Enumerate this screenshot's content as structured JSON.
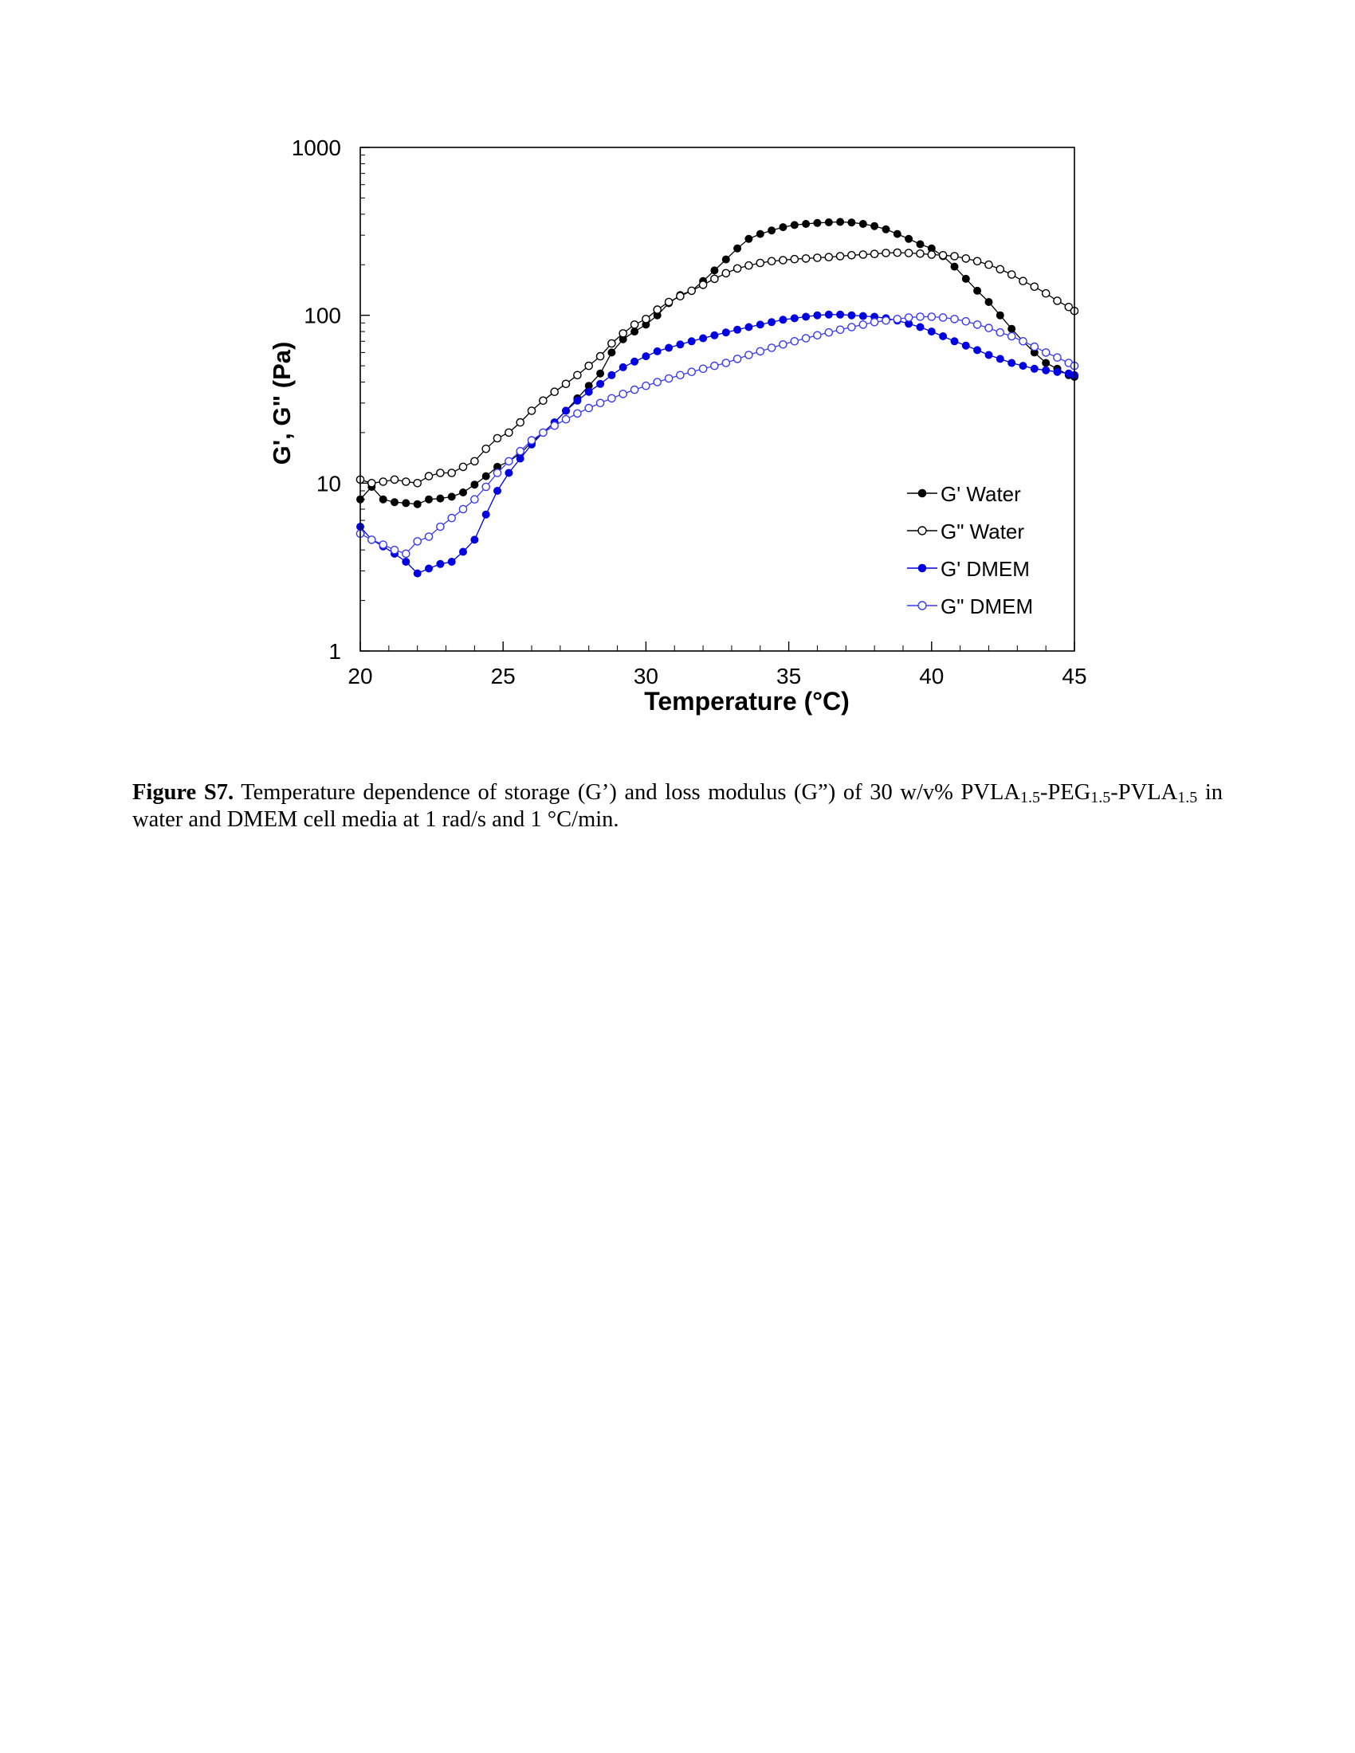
{
  "chart_data": {
    "type": "line",
    "title": "",
    "xlabel": "Temperature (°C)",
    "ylabel": "G', G\" (Pa)",
    "xlim": [
      20,
      45
    ],
    "ylim": [
      1,
      1000
    ],
    "yscale": "log",
    "xticks": [
      20,
      25,
      30,
      35,
      40,
      45
    ],
    "xtick_labels": [
      "20",
      "25",
      "30",
      "35",
      "40",
      "45"
    ],
    "yticks": [
      1,
      10,
      100,
      1000
    ],
    "ytick_labels": [
      "1",
      "10",
      "100",
      "1000"
    ],
    "grid": false,
    "legend_position": "lower-right",
    "series": [
      {
        "name": "G' Water",
        "color": "#000000",
        "marker": "filled-circle",
        "x": [
          20.0,
          20.4,
          20.8,
          21.2,
          21.6,
          22.0,
          22.4,
          22.8,
          23.2,
          23.6,
          24.0,
          24.4,
          24.8,
          25.2,
          25.6,
          26.0,
          26.4,
          26.8,
          27.2,
          27.6,
          28.0,
          28.4,
          28.8,
          29.2,
          29.6,
          30.0,
          30.4,
          30.8,
          31.2,
          31.6,
          32.0,
          32.4,
          32.8,
          33.2,
          33.6,
          34.0,
          34.4,
          34.8,
          35.2,
          35.6,
          36.0,
          36.4,
          36.8,
          37.2,
          37.6,
          38.0,
          38.4,
          38.8,
          39.2,
          39.6,
          40.0,
          40.4,
          40.8,
          41.2,
          41.6,
          42.0,
          42.4,
          42.8,
          43.2,
          43.6,
          44.0,
          44.4,
          44.8,
          45.0
        ],
        "y": [
          8.0,
          9.5,
          8.0,
          7.7,
          7.6,
          7.5,
          8.0,
          8.1,
          8.3,
          8.8,
          9.8,
          11.0,
          12.5,
          13.5,
          15.0,
          17.5,
          20,
          23,
          27,
          32,
          38,
          45,
          60,
          72,
          80,
          88,
          100,
          118,
          132,
          140,
          160,
          185,
          215,
          250,
          285,
          305,
          320,
          335,
          345,
          350,
          355,
          358,
          360,
          357,
          350,
          340,
          325,
          305,
          285,
          265,
          250,
          225,
          195,
          165,
          140,
          120,
          100,
          83,
          70,
          60,
          52,
          48,
          44,
          43
        ]
      },
      {
        "name": "G\" Water",
        "color": "#000000",
        "marker": "open-circle",
        "x": [
          20.0,
          20.4,
          20.8,
          21.2,
          21.6,
          22.0,
          22.4,
          22.8,
          23.2,
          23.6,
          24.0,
          24.4,
          24.8,
          25.2,
          25.6,
          26.0,
          26.4,
          26.8,
          27.2,
          27.6,
          28.0,
          28.4,
          28.8,
          29.2,
          29.6,
          30.0,
          30.4,
          30.8,
          31.2,
          31.6,
          32.0,
          32.4,
          32.8,
          33.2,
          33.6,
          34.0,
          34.4,
          34.8,
          35.2,
          35.6,
          36.0,
          36.4,
          36.8,
          37.2,
          37.6,
          38.0,
          38.4,
          38.8,
          39.2,
          39.6,
          40.0,
          40.4,
          40.8,
          41.2,
          41.6,
          42.0,
          42.4,
          42.8,
          43.2,
          43.6,
          44.0,
          44.4,
          44.8,
          45.0
        ],
        "y": [
          10.5,
          10.0,
          10.2,
          10.5,
          10.2,
          10.0,
          11.0,
          11.5,
          11.5,
          12.5,
          13.5,
          16.0,
          18.5,
          20,
          23,
          27,
          31,
          35,
          39,
          44,
          50,
          57,
          68,
          78,
          88,
          95,
          108,
          120,
          130,
          140,
          152,
          165,
          178,
          190,
          198,
          205,
          210,
          213,
          216,
          218,
          220,
          222,
          225,
          228,
          230,
          232,
          235,
          236,
          235,
          233,
          230,
          228,
          225,
          218,
          210,
          200,
          188,
          175,
          160,
          148,
          135,
          122,
          112,
          106
        ]
      },
      {
        "name": "G' DMEM",
        "color": "#0000e0",
        "marker": "filled-circle",
        "x": [
          20.0,
          20.4,
          20.8,
          21.2,
          21.6,
          22.0,
          22.4,
          22.8,
          23.2,
          23.6,
          24.0,
          24.4,
          24.8,
          25.2,
          25.6,
          26.0,
          26.4,
          26.8,
          27.2,
          27.6,
          28.0,
          28.4,
          28.8,
          29.2,
          29.6,
          30.0,
          30.4,
          30.8,
          31.2,
          31.6,
          32.0,
          32.4,
          32.8,
          33.2,
          33.6,
          34.0,
          34.4,
          34.8,
          35.2,
          35.6,
          36.0,
          36.4,
          36.8,
          37.2,
          37.6,
          38.0,
          38.4,
          38.8,
          39.2,
          39.6,
          40.0,
          40.4,
          40.8,
          41.2,
          41.6,
          42.0,
          42.4,
          42.8,
          43.2,
          43.6,
          44.0,
          44.4,
          44.8,
          45.0
        ],
        "y": [
          5.5,
          4.6,
          4.2,
          3.8,
          3.4,
          2.9,
          3.1,
          3.3,
          3.4,
          3.9,
          4.6,
          6.5,
          9.0,
          11.5,
          14.0,
          17.0,
          20,
          23,
          27,
          31,
          35,
          39,
          44,
          49,
          53,
          57,
          61,
          64,
          67,
          70,
          73,
          76,
          79,
          82,
          85,
          88,
          91,
          94,
          96,
          98,
          100,
          101,
          101,
          100,
          99,
          98,
          96,
          93,
          89,
          85,
          80,
          75,
          70,
          66,
          62,
          58,
          55,
          52,
          50,
          48,
          47,
          46,
          45,
          44
        ]
      },
      {
        "name": "G\" DMEM",
        "color": "#3a3af0",
        "marker": "open-circle",
        "x": [
          20.0,
          20.4,
          20.8,
          21.2,
          21.6,
          22.0,
          22.4,
          22.8,
          23.2,
          23.6,
          24.0,
          24.4,
          24.8,
          25.2,
          25.6,
          26.0,
          26.4,
          26.8,
          27.2,
          27.6,
          28.0,
          28.4,
          28.8,
          29.2,
          29.6,
          30.0,
          30.4,
          30.8,
          31.2,
          31.6,
          32.0,
          32.4,
          32.8,
          33.2,
          33.6,
          34.0,
          34.4,
          34.8,
          35.2,
          35.6,
          36.0,
          36.4,
          36.8,
          37.2,
          37.6,
          38.0,
          38.4,
          38.8,
          39.2,
          39.6,
          40.0,
          40.4,
          40.8,
          41.2,
          41.6,
          42.0,
          42.4,
          42.8,
          43.2,
          43.6,
          44.0,
          44.4,
          44.8,
          45.0
        ],
        "y": [
          5.0,
          4.6,
          4.3,
          4.0,
          3.8,
          4.5,
          4.8,
          5.5,
          6.2,
          7.0,
          8.0,
          9.5,
          11.5,
          13.5,
          15.5,
          18.0,
          20,
          22,
          24,
          26,
          28,
          30,
          32,
          34,
          36,
          38,
          40,
          42,
          44,
          46,
          48,
          50,
          52,
          55,
          58,
          61,
          64,
          67,
          70,
          73,
          76,
          79,
          82,
          85,
          88,
          91,
          93,
          95,
          97,
          98,
          98,
          97,
          95,
          92,
          88,
          84,
          79,
          75,
          70,
          65,
          60,
          56,
          52,
          50
        ]
      }
    ]
  },
  "caption": {
    "label": "Figure S7.",
    "part1": " Temperature dependence of storage (G’) and loss modulus (G”) of 30 w/v% PVLA",
    "sub1": "1.5",
    "part2": "-PEG",
    "sub2": "1.5",
    "part3": "-PVLA",
    "sub3": "1.5",
    "part4": " in water and DMEM cell media at 1 rad/s and 1 °C/min."
  }
}
